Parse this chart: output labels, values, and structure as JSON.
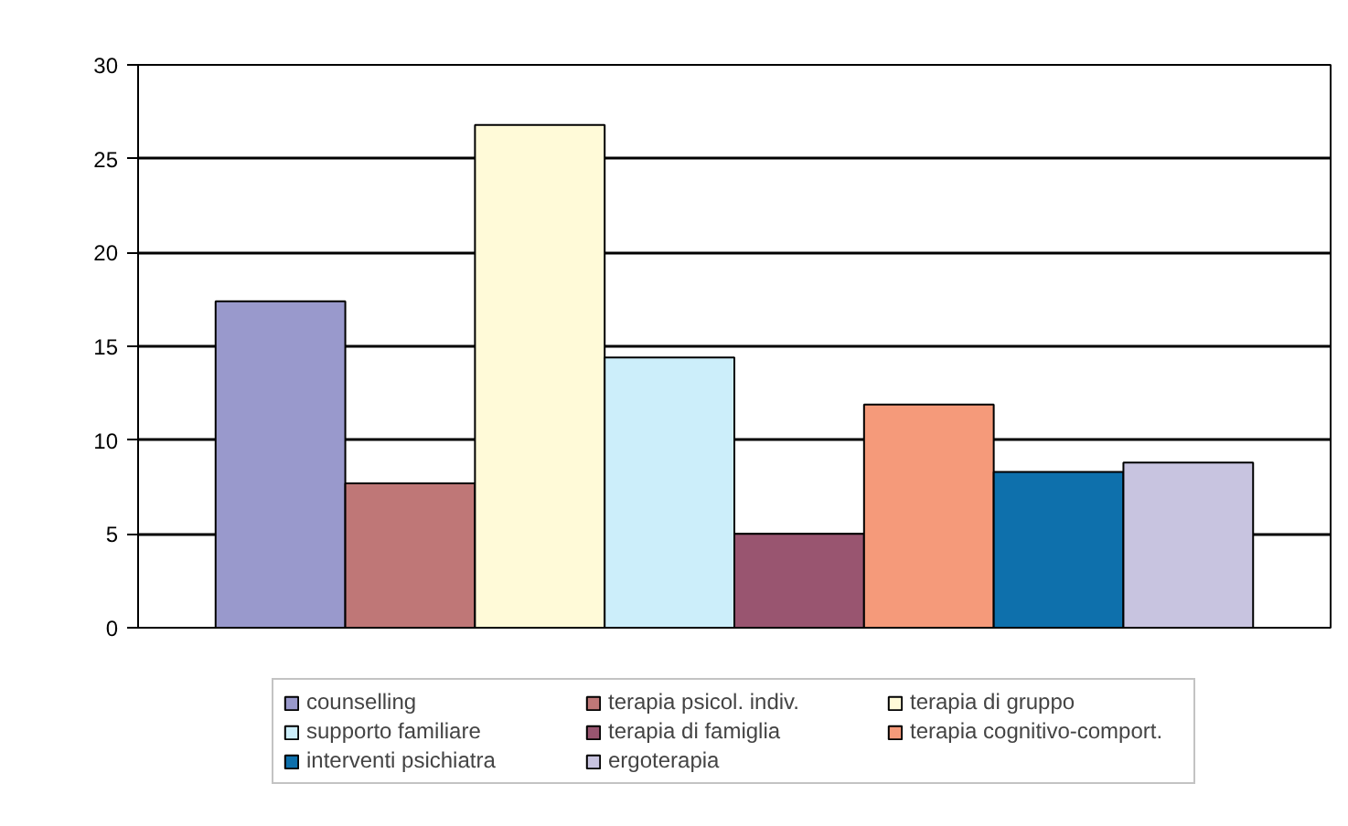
{
  "chart_data": {
    "type": "bar",
    "categories": [
      null
    ],
    "series": [
      {
        "name": "counselling",
        "color": "#9999cc",
        "values": [
          17.4
        ]
      },
      {
        "name": "terapia psicol. indiv.",
        "color": "#bf7777",
        "values": [
          7.7
        ]
      },
      {
        "name": "terapia di gruppo",
        "color": "#fffad8",
        "values": [
          26.8
        ]
      },
      {
        "name": "supporto familiare",
        "color": "#cceefa",
        "values": [
          14.4
        ]
      },
      {
        "name": "terapia di famiglia",
        "color": "#995570",
        "values": [
          5.0
        ]
      },
      {
        "name": "terapia cognitivo-comport.",
        "color": "#f59a7a",
        "values": [
          11.9
        ]
      },
      {
        "name": "interventi psichiatra",
        "color": "#0e70ac",
        "values": [
          8.3
        ]
      },
      {
        "name": "ergoterapia",
        "color": "#c8c4e0",
        "values": [
          8.8
        ]
      }
    ],
    "ylim": [
      0,
      30
    ],
    "yticks": [
      0,
      5,
      10,
      15,
      20,
      25,
      30
    ],
    "grid": "y",
    "legend": "bottom",
    "tick_labels": "y"
  }
}
